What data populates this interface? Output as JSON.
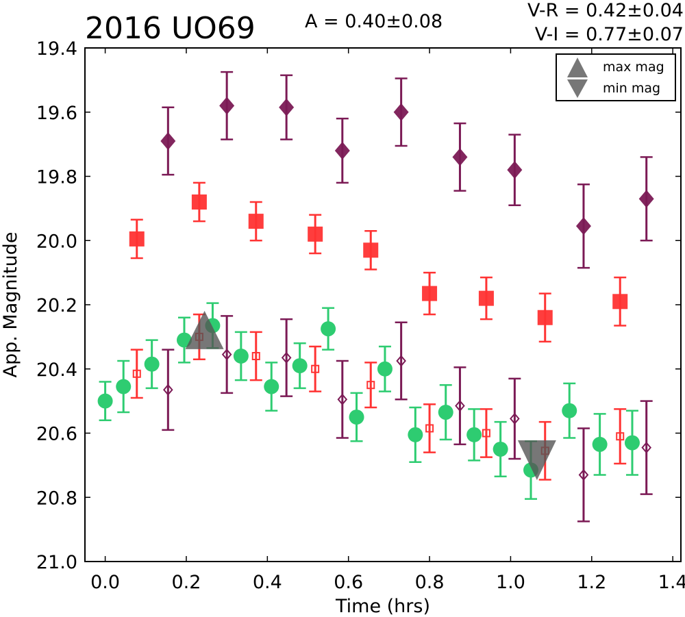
{
  "chart_data": {
    "type": "scatter",
    "title": "2016 UO69",
    "amplitude_label": "A  = 0.40±0.08",
    "color_labels": [
      "V-R = 0.42±0.04",
      "V-I  = 0.77±0.07"
    ],
    "xlabel": "Time (hrs)",
    "ylabel": "App. Magnitude",
    "xlim": [
      -0.05,
      1.42
    ],
    "ylim": [
      21.0,
      19.4
    ],
    "y_inverted": true,
    "xticks": [
      0.0,
      0.2,
      0.4,
      0.6,
      0.8,
      1.0,
      1.2,
      1.4
    ],
    "xtick_labels": [
      "0.0",
      "0.2",
      "0.4",
      "0.6",
      "0.8",
      "1.0",
      "1.2",
      "1.4"
    ],
    "yticks": [
      19.4,
      19.6,
      19.8,
      20.0,
      20.2,
      20.4,
      20.6,
      20.8,
      21.0
    ],
    "ytick_labels": [
      "19.4",
      "19.6",
      "19.8",
      "20.0",
      "20.2",
      "20.4",
      "20.6",
      "20.8",
      "21.0"
    ],
    "grid": false,
    "legend": {
      "placement": "top-right",
      "entries": [
        {
          "label": "max mag",
          "marker": "triangle-up"
        },
        {
          "label": "min mag",
          "marker": "triangle-down"
        }
      ]
    },
    "colors": {
      "green": "#2ecc71",
      "red": "#ff3333",
      "purple": "#7b1a55",
      "extrema": "#555555"
    },
    "series": [
      {
        "marker": "circle",
        "filled": true,
        "color": "#2ecc71",
        "points": [
          [
            0.0,
            20.5,
            0.06
          ],
          [
            0.045,
            20.455,
            0.08
          ],
          [
            0.115,
            20.385,
            0.075
          ],
          [
            0.195,
            20.31,
            0.07
          ],
          [
            0.265,
            20.265,
            0.07
          ],
          [
            0.335,
            20.36,
            0.075
          ],
          [
            0.41,
            20.455,
            0.075
          ],
          [
            0.48,
            20.39,
            0.07
          ],
          [
            0.55,
            20.275,
            0.065
          ],
          [
            0.62,
            20.55,
            0.075
          ],
          [
            0.69,
            20.4,
            0.07
          ],
          [
            0.765,
            20.605,
            0.085
          ],
          [
            0.84,
            20.535,
            0.085
          ],
          [
            0.91,
            20.605,
            0.08
          ],
          [
            0.975,
            20.65,
            0.085
          ],
          [
            1.05,
            20.715,
            0.09
          ],
          [
            1.145,
            20.53,
            0.085
          ],
          [
            1.22,
            20.635,
            0.095
          ],
          [
            1.3,
            20.63,
            0.1
          ]
        ]
      },
      {
        "marker": "square",
        "filled": false,
        "color": "#ff3333",
        "points": [
          [
            0.078,
            20.415,
            0.075
          ],
          [
            0.232,
            20.3,
            0.07
          ],
          [
            0.372,
            20.36,
            0.075
          ],
          [
            0.518,
            20.4,
            0.07
          ],
          [
            0.655,
            20.45,
            0.07
          ],
          [
            0.8,
            20.585,
            0.075
          ],
          [
            0.94,
            20.6,
            0.075
          ],
          [
            1.085,
            20.655,
            0.09
          ],
          [
            1.27,
            20.61,
            0.085
          ]
        ]
      },
      {
        "marker": "diamond",
        "filled": false,
        "color": "#7b1a55",
        "points": [
          [
            0.155,
            20.465,
            0.125
          ],
          [
            0.3,
            20.355,
            0.12
          ],
          [
            0.447,
            20.365,
            0.12
          ],
          [
            0.585,
            20.495,
            0.12
          ],
          [
            0.73,
            20.375,
            0.12
          ],
          [
            0.875,
            20.515,
            0.12
          ],
          [
            1.01,
            20.555,
            0.125
          ],
          [
            1.18,
            20.73,
            0.145
          ],
          [
            1.335,
            20.645,
            0.145
          ]
        ]
      },
      {
        "marker": "square",
        "filled": true,
        "color": "#ff3333",
        "points": [
          [
            0.078,
            19.995,
            0.06
          ],
          [
            0.232,
            19.88,
            0.06
          ],
          [
            0.372,
            19.94,
            0.06
          ],
          [
            0.518,
            19.98,
            0.06
          ],
          [
            0.655,
            20.03,
            0.06
          ],
          [
            0.8,
            20.165,
            0.065
          ],
          [
            0.94,
            20.18,
            0.065
          ],
          [
            1.085,
            20.24,
            0.075
          ],
          [
            1.27,
            20.19,
            0.075
          ]
        ]
      },
      {
        "marker": "diamond",
        "filled": true,
        "color": "#7b1a55",
        "points": [
          [
            0.155,
            19.69,
            0.105
          ],
          [
            0.3,
            19.58,
            0.105
          ],
          [
            0.447,
            19.585,
            0.1
          ],
          [
            0.585,
            19.72,
            0.1
          ],
          [
            0.73,
            19.6,
            0.105
          ],
          [
            0.875,
            19.74,
            0.105
          ],
          [
            1.01,
            19.78,
            0.11
          ],
          [
            1.18,
            19.955,
            0.13
          ],
          [
            1.335,
            19.87,
            0.13
          ]
        ]
      }
    ],
    "extrema": [
      {
        "type": "max",
        "x": 0.245,
        "y": 20.3
      },
      {
        "type": "min",
        "x": 1.065,
        "y": 20.665
      }
    ]
  }
}
